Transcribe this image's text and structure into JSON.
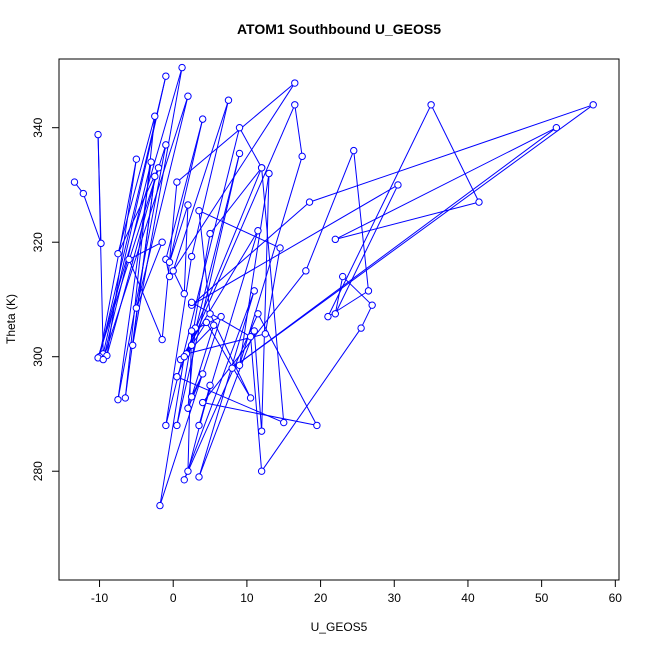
{
  "chart_data": {
    "type": "line",
    "title": "ATOM1 Southbound U_GEOS5",
    "xlabel": "U_GEOS5",
    "ylabel": "Theta (K)",
    "xlim": [
      -15.5,
      60.5
    ],
    "ylim": [
      261,
      352
    ],
    "x_ticks": [
      -10,
      0,
      10,
      20,
      30,
      40,
      50,
      60
    ],
    "y_ticks": [
      280,
      300,
      320,
      340
    ],
    "x_tick_labels": [
      "-10",
      "0",
      "10",
      "20",
      "30",
      "40",
      "50",
      "60"
    ],
    "y_tick_labels": [
      "280",
      "300",
      "320",
      "340"
    ],
    "grid": false,
    "line_color": "#0000ff",
    "marker": "open-circle",
    "series": [
      {
        "points": [
          [
            -13.4,
            330.5
          ],
          [
            -12.2,
            328.5
          ],
          [
            -9.8,
            319.8
          ],
          [
            -10.2,
            338.8
          ],
          [
            -9.5,
            300.5
          ],
          [
            -1.0,
            349.0
          ],
          [
            -10.0,
            300.0
          ],
          [
            -5.0,
            334.5
          ],
          [
            -9.0,
            300.2
          ],
          [
            -2.0,
            333.0
          ],
          [
            -7.5,
            318.0
          ],
          [
            -2.5,
            342.0
          ],
          [
            -6.5,
            292.8
          ],
          [
            -2.5,
            331.5
          ],
          [
            -5.5,
            302.0
          ],
          [
            1.2,
            350.5
          ],
          [
            -10.2,
            299.8
          ],
          [
            -1.0,
            337.0
          ],
          [
            -7.5,
            292.5
          ],
          [
            -3.0,
            334.0
          ],
          [
            -9.5,
            299.5
          ],
          [
            2.0,
            345.5
          ],
          [
            -5.0,
            308.5
          ],
          [
            -1.5,
            320.0
          ],
          [
            -6.0,
            317.0
          ],
          [
            -1.5,
            303.0
          ],
          [
            0.5,
            330.5
          ],
          [
            16.5,
            347.8
          ],
          [
            -0.5,
            314.0
          ],
          [
            -1.0,
            317.0
          ],
          [
            4.0,
            341.5
          ],
          [
            -0.5,
            316.5
          ],
          [
            2.0,
            326.5
          ],
          [
            1.5,
            311.0
          ],
          [
            0.0,
            315.0
          ],
          [
            7.5,
            344.8
          ],
          [
            2.5,
            317.5
          ],
          [
            -1.0,
            288.0
          ],
          [
            9.0,
            340.0
          ],
          [
            12.0,
            333.0
          ],
          [
            5.0,
            321.5
          ],
          [
            0.5,
            288.0
          ],
          [
            9.0,
            335.5
          ],
          [
            2.5,
            302.0
          ],
          [
            4.5,
            306.0
          ],
          [
            10.5,
            292.8
          ],
          [
            5.0,
            307.5
          ],
          [
            3.5,
            325.5
          ],
          [
            14.5,
            319.0
          ],
          [
            12.5,
            304.0
          ],
          [
            1.8,
            300.5
          ],
          [
            3.0,
            305.0
          ],
          [
            2.0,
            291.0
          ],
          [
            4.0,
            297.0
          ],
          [
            2.5,
            293.0
          ],
          [
            5.5,
            305.5
          ],
          [
            1.0,
            299.5
          ],
          [
            11.5,
            322.0
          ],
          [
            3.5,
            288.0
          ],
          [
            5.0,
            295.0
          ],
          [
            2.0,
            280.0
          ],
          [
            2.5,
            304.5
          ],
          [
            6.5,
            307.0
          ],
          [
            -1.8,
            274.0
          ],
          [
            1.5,
            300.0
          ],
          [
            12.0,
            333.0
          ],
          [
            15.0,
            288.5
          ],
          [
            0.5,
            296.5
          ],
          [
            16.5,
            344.0
          ],
          [
            17.5,
            335.0
          ],
          [
            9.0,
            298.5
          ],
          [
            13.0,
            332.0
          ],
          [
            12.0,
            287.0
          ],
          [
            11.0,
            304.5
          ],
          [
            3.5,
            279.0
          ],
          [
            11.0,
            311.5
          ],
          [
            1.5,
            278.5
          ],
          [
            11.5,
            307.5
          ],
          [
            19.5,
            288.0
          ],
          [
            4.0,
            292.0
          ],
          [
            18.0,
            315.0
          ],
          [
            24.5,
            336.0
          ],
          [
            26.5,
            311.5
          ],
          [
            21.0,
            307.0
          ],
          [
            35.0,
            344.0
          ],
          [
            41.5,
            327.0
          ],
          [
            22.0,
            320.5
          ],
          [
            52.0,
            340.0
          ],
          [
            8.0,
            298.0
          ],
          [
            57.0,
            344.0
          ],
          [
            18.5,
            327.0
          ],
          [
            2.5,
            309.0
          ],
          [
            30.5,
            330.0
          ],
          [
            22.0,
            307.5
          ],
          [
            23.0,
            314.0
          ],
          [
            27.0,
            309.0
          ],
          [
            25.5,
            305.0
          ],
          [
            12.0,
            280.0
          ],
          [
            10.5,
            303.5
          ],
          [
            2.5,
            309.5
          ]
        ]
      }
    ]
  }
}
